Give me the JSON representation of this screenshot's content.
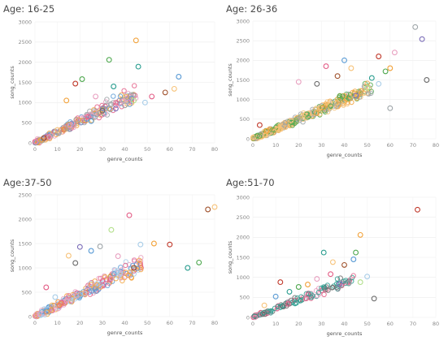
{
  "palette": [
    "#f2a23a",
    "#5a9bd5",
    "#e35d86",
    "#9ea5a8",
    "#e8a0c0",
    "#4fa84f",
    "#f7c37a",
    "#a8cde8",
    "#7b6db8",
    "#c0392b",
    "#2a9d8f",
    "#a0522d",
    "#b2df8a",
    "#6b6b6b"
  ],
  "chart_data": [
    {
      "type": "scatter",
      "title": "Age: 16-25",
      "xlabel": "genre_counts",
      "ylabel": "song_counts",
      "xlim": [
        0,
        80
      ],
      "ylim": [
        0,
        3000
      ],
      "xticks": [
        0,
        10,
        20,
        30,
        40,
        50,
        60,
        70,
        80
      ],
      "yticks": [
        0,
        500,
        1000,
        1500,
        2000,
        2500,
        3000
      ],
      "grid": true,
      "marker": "hollow-circle",
      "highlight_points": [
        [
          45,
          2540
        ],
        [
          33,
          2060
        ],
        [
          46,
          1890
        ],
        [
          64,
          1640
        ],
        [
          62,
          1340
        ],
        [
          58,
          1250
        ],
        [
          52,
          1150
        ],
        [
          49,
          1000
        ],
        [
          44,
          1050
        ],
        [
          40,
          930
        ],
        [
          36,
          850
        ],
        [
          30,
          800
        ],
        [
          27,
          1150
        ],
        [
          18,
          1470
        ],
        [
          14,
          1050
        ],
        [
          21,
          1580
        ],
        [
          35,
          1400
        ],
        [
          25,
          540
        ],
        [
          10,
          320
        ],
        [
          4,
          120
        ]
      ],
      "cloud": {
        "x_max": 45,
        "slope": 27,
        "spread": 220,
        "count": 260,
        "colors": [
          2,
          3,
          4,
          0,
          1
        ]
      }
    },
    {
      "type": "scatter",
      "title": "Age: 26-36",
      "xlabel": "genre_counts",
      "ylabel": "song_counts",
      "xlim": [
        0,
        80
      ],
      "ylim": [
        0,
        3000
      ],
      "xticks": [
        0,
        10,
        20,
        30,
        40,
        50,
        60,
        70,
        80
      ],
      "yticks": [
        0,
        500,
        1000,
        1500,
        2000,
        2500,
        3000
      ],
      "grid": true,
      "marker": "hollow-circle",
      "highlight_points": [
        [
          71,
          2850
        ],
        [
          74,
          2540
        ],
        [
          76,
          1500
        ],
        [
          62,
          2200
        ],
        [
          55,
          2100
        ],
        [
          60,
          1800
        ],
        [
          58,
          1720
        ],
        [
          52,
          1550
        ],
        [
          40,
          2000
        ],
        [
          43,
          1800
        ],
        [
          37,
          1600
        ],
        [
          32,
          1850
        ],
        [
          55,
          1400
        ],
        [
          50,
          1300
        ],
        [
          60,
          780
        ],
        [
          45,
          1100
        ],
        [
          28,
          1400
        ],
        [
          20,
          1450
        ],
        [
          3,
          350
        ],
        [
          6,
          200
        ]
      ],
      "cloud": {
        "x_max": 52,
        "slope": 25,
        "spread": 200,
        "count": 380,
        "colors": [
          6,
          0,
          5,
          6,
          3
        ]
      }
    },
    {
      "type": "scatter",
      "title": "Age:37-50",
      "xlabel": "genre_counts",
      "ylabel": "song_counts",
      "xlim": [
        0,
        80
      ],
      "ylim": [
        0,
        2500
      ],
      "xticks": [
        0,
        10,
        20,
        30,
        40,
        50,
        60,
        70,
        80
      ],
      "yticks": [
        0,
        500,
        1000,
        1500,
        2000,
        2500
      ],
      "grid": true,
      "marker": "hollow-circle",
      "highlight_points": [
        [
          80,
          2250
        ],
        [
          77,
          2200
        ],
        [
          42,
          2080
        ],
        [
          47,
          1480
        ],
        [
          34,
          1780
        ],
        [
          29,
          1440
        ],
        [
          20,
          1430
        ],
        [
          18,
          1100
        ],
        [
          37,
          1240
        ],
        [
          60,
          1480
        ],
        [
          53,
          1500
        ],
        [
          73,
          1110
        ],
        [
          68,
          1000
        ],
        [
          25,
          1350
        ],
        [
          15,
          1250
        ],
        [
          44,
          1000
        ],
        [
          5,
          600
        ],
        [
          9,
          400
        ]
      ],
      "cloud": {
        "x_max": 48,
        "slope": 23,
        "spread": 200,
        "count": 300,
        "colors": [
          2,
          4,
          7,
          0,
          1
        ]
      }
    },
    {
      "type": "scatter",
      "title": "Age:51-70",
      "xlabel": "genre_counts",
      "ylabel": "song_counts",
      "xlim": [
        0,
        80
      ],
      "ylim": [
        0,
        3000
      ],
      "xticks": [
        0,
        10,
        20,
        30,
        40,
        50,
        60,
        70,
        80
      ],
      "yticks": [
        0,
        500,
        1000,
        1500,
        2000,
        2500,
        3000
      ],
      "grid": true,
      "marker": "hollow-circle",
      "highlight_points": [
        [
          72,
          2690
        ],
        [
          47,
          2060
        ],
        [
          45,
          1620
        ],
        [
          31,
          1620
        ],
        [
          44,
          1450
        ],
        [
          35,
          1380
        ],
        [
          40,
          1310
        ],
        [
          34,
          1080
        ],
        [
          50,
          1020
        ],
        [
          47,
          880
        ],
        [
          42,
          860
        ],
        [
          38,
          840
        ],
        [
          53,
          470
        ],
        [
          28,
          960
        ],
        [
          12,
          880
        ],
        [
          24,
          820
        ],
        [
          20,
          760
        ],
        [
          16,
          640
        ],
        [
          10,
          520
        ],
        [
          5,
          300
        ]
      ],
      "cloud": {
        "x_max": 44,
        "slope": 22,
        "spread": 160,
        "count": 140,
        "colors": [
          10,
          10,
          4,
          2,
          13
        ]
      }
    }
  ]
}
